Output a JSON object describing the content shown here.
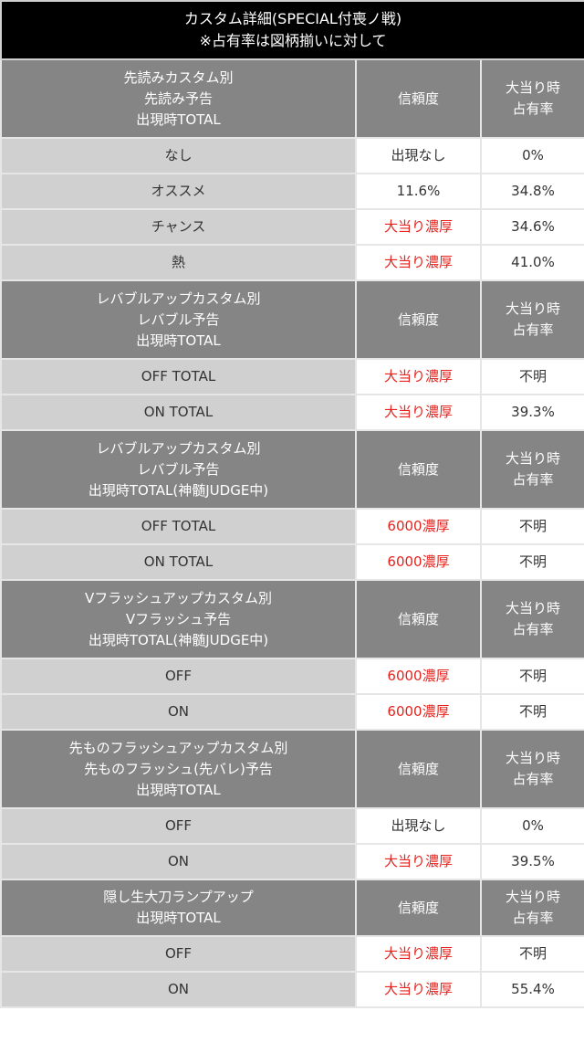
{
  "title": {
    "line1": "カスタム詳細(SPECIAL付喪ノ戦)",
    "line2": "※占有率は図柄揃いに対して"
  },
  "columns": {
    "reliability": "信頼度",
    "share_line1": "大当り時",
    "share_line2": "占有率"
  },
  "colors": {
    "title_bg": "#000000",
    "header_bg": "#858585",
    "label_bg": "#d0d0d0",
    "value_bg": "#ffffff",
    "highlight_red": "#e6231e"
  },
  "sections": [
    {
      "heading": [
        "先読みカスタム別",
        "先読み予告",
        "出現時TOTAL"
      ],
      "rows": [
        {
          "label": "なし",
          "reliability": "出現なし",
          "reliability_red": false,
          "share": "0%"
        },
        {
          "label": "オススメ",
          "reliability": "11.6%",
          "reliability_red": false,
          "share": "34.8%"
        },
        {
          "label": "チャンス",
          "reliability": "大当り濃厚",
          "reliability_red": true,
          "share": "34.6%"
        },
        {
          "label": "熱",
          "reliability": "大当り濃厚",
          "reliability_red": true,
          "share": "41.0%"
        }
      ]
    },
    {
      "heading": [
        "レバブルアップカスタム別",
        "レバブル予告",
        "出現時TOTAL"
      ],
      "rows": [
        {
          "label": "OFF TOTAL",
          "reliability": "大当り濃厚",
          "reliability_red": true,
          "share": "不明"
        },
        {
          "label": "ON TOTAL",
          "reliability": "大当り濃厚",
          "reliability_red": true,
          "share": "39.3%"
        }
      ]
    },
    {
      "heading": [
        "レバブルアップカスタム別",
        "レバブル予告",
        "出現時TOTAL(神髄JUDGE中)"
      ],
      "rows": [
        {
          "label": "OFF TOTAL",
          "reliability": "6000濃厚",
          "reliability_red": true,
          "share": "不明"
        },
        {
          "label": "ON TOTAL",
          "reliability": "6000濃厚",
          "reliability_red": true,
          "share": "不明"
        }
      ]
    },
    {
      "heading": [
        "Vフラッシュアップカスタム別",
        "Vフラッシュ予告",
        "出現時TOTAL(神髄JUDGE中)"
      ],
      "rows": [
        {
          "label": "OFF",
          "reliability": "6000濃厚",
          "reliability_red": true,
          "share": "不明"
        },
        {
          "label": "ON",
          "reliability": "6000濃厚",
          "reliability_red": true,
          "share": "不明"
        }
      ]
    },
    {
      "heading": [
        "先ものフラッシュアップカスタム別",
        "先ものフラッシュ(先バレ)予告",
        "出現時TOTAL"
      ],
      "rows": [
        {
          "label": "OFF",
          "reliability": "出現なし",
          "reliability_red": false,
          "share": "0%"
        },
        {
          "label": "ON",
          "reliability": "大当り濃厚",
          "reliability_red": true,
          "share": "39.5%"
        }
      ]
    },
    {
      "heading": [
        "隠し生大刀ランプアップ",
        "出現時TOTAL"
      ],
      "rows": [
        {
          "label": "OFF",
          "reliability": "大当り濃厚",
          "reliability_red": true,
          "share": "不明"
        },
        {
          "label": "ON",
          "reliability": "大当り濃厚",
          "reliability_red": true,
          "share": "55.4%"
        }
      ]
    }
  ]
}
